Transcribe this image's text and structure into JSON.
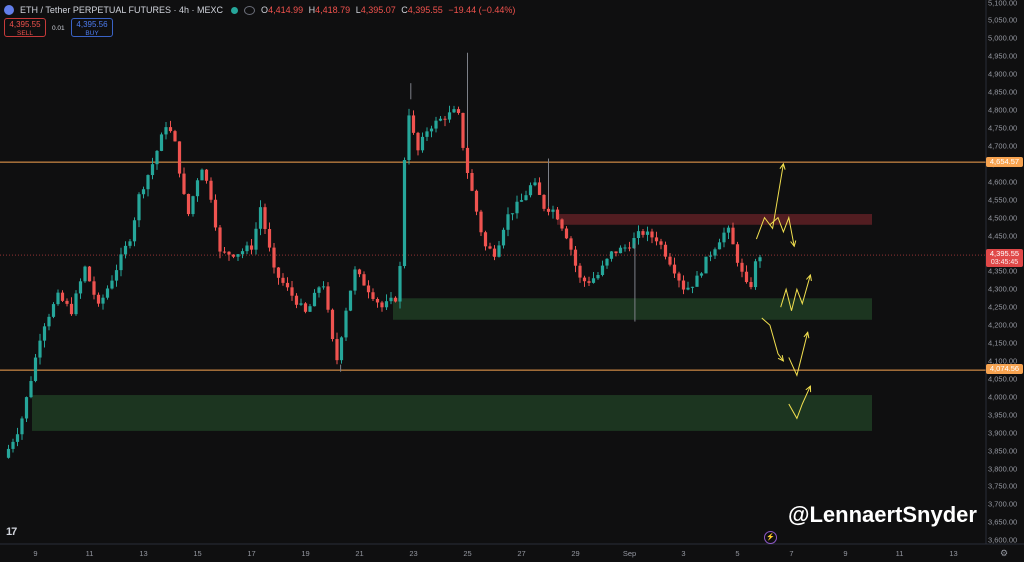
{
  "header": {
    "symbol": "ETH / Tether PERPETUAL FUTURES · 4h · MEXC",
    "ohlc": [
      {
        "k": "O",
        "v": "4,414.99"
      },
      {
        "k": "H",
        "v": "4,418.79"
      },
      {
        "k": "L",
        "v": "4,395.07"
      },
      {
        "k": "C",
        "v": "4,395.55"
      }
    ],
    "change": "−19.44 (−0.44%)"
  },
  "trade": {
    "sell_price": "4,395.55",
    "sell_label": "SELL",
    "buy_price": "4,395.56",
    "buy_label": "BUY",
    "spread": "0.01"
  },
  "price_axis": [
    "5,100.00",
    "5,050.00",
    "5,000.00",
    "4,950.00",
    "4,900.00",
    "4,850.00",
    "4,800.00",
    "4,750.00",
    "4,700.00",
    "4,650.00",
    "4,600.00",
    "4,550.00",
    "4,500.00",
    "4,450.00",
    "4,400.00",
    "4,350.00",
    "4,300.00",
    "4,250.00",
    "4,200.00",
    "4,150.00",
    "4,100.00",
    "4,050.00",
    "4,000.00",
    "3,950.00",
    "3,900.00",
    "3,850.00",
    "3,800.00",
    "3,750.00",
    "3,700.00",
    "3,650.00",
    "3,600.00"
  ],
  "time_axis": [
    "9",
    "11",
    "13",
    "15",
    "17",
    "19",
    "21",
    "23",
    "25",
    "27",
    "29",
    "Sep",
    "3",
    "5",
    "7",
    "9",
    "11",
    "13"
  ],
  "badges": {
    "upper_line": "4,654.57",
    "current": "4,395.55",
    "countdown": "03:45:45",
    "lower_line": "4,074.56"
  },
  "watermark": "@LennaertSnyder",
  "tv_logo": "17",
  "colors": {
    "up": "#26a69a",
    "down": "#ef5350",
    "level": "#f7a350",
    "demand": "#1e3a22",
    "supply": "#5a1f24",
    "arrow": "#f2e04f"
  },
  "chart_data": {
    "type": "candlestick",
    "y_range": [
      3580,
      5110
    ],
    "x_range_days": [
      "Aug 8",
      "Sep 13"
    ],
    "horizontal_levels": [
      4654.57,
      4074.56
    ],
    "current_price": 4395.55,
    "zones": [
      {
        "kind": "supply",
        "low": 4480,
        "high": 4510
      },
      {
        "kind": "demand",
        "low": 4215,
        "high": 4275
      },
      {
        "kind": "demand",
        "low": 3905,
        "high": 4005
      }
    ],
    "anchors": [
      [
        8.0,
        3830
      ],
      [
        8.6,
        3920
      ],
      [
        9.0,
        4050
      ],
      [
        9.4,
        4190
      ],
      [
        10.0,
        4280
      ],
      [
        10.5,
        4240
      ],
      [
        11.0,
        4360
      ],
      [
        11.5,
        4250
      ],
      [
        12.0,
        4330
      ],
      [
        12.7,
        4450
      ],
      [
        13.0,
        4560
      ],
      [
        13.5,
        4650
      ],
      [
        14.0,
        4760
      ],
      [
        14.3,
        4720
      ],
      [
        14.8,
        4500
      ],
      [
        15.3,
        4650
      ],
      [
        15.7,
        4550
      ],
      [
        16.0,
        4400
      ],
      [
        16.6,
        4400
      ],
      [
        17.2,
        4420
      ],
      [
        17.5,
        4530
      ],
      [
        18.0,
        4350
      ],
      [
        18.5,
        4300
      ],
      [
        19.2,
        4230
      ],
      [
        19.8,
        4330
      ],
      [
        20.3,
        4090
      ],
      [
        20.7,
        4260
      ],
      [
        21.0,
        4350
      ],
      [
        21.5,
        4300
      ],
      [
        22.0,
        4250
      ],
      [
        22.6,
        4280
      ],
      [
        22.75,
        4460
      ],
      [
        22.9,
        4830
      ],
      [
        23.3,
        4680
      ],
      [
        23.7,
        4750
      ],
      [
        24.3,
        4780
      ],
      [
        24.8,
        4800
      ],
      [
        25.1,
        4650
      ],
      [
        25.4,
        4550
      ],
      [
        25.8,
        4420
      ],
      [
        26.2,
        4400
      ],
      [
        26.6,
        4500
      ],
      [
        27.2,
        4550
      ],
      [
        27.6,
        4600
      ],
      [
        28.0,
        4530
      ],
      [
        28.4,
        4520
      ],
      [
        28.9,
        4440
      ],
      [
        29.3,
        4330
      ],
      [
        29.6,
        4320
      ],
      [
        30.0,
        4340
      ],
      [
        30.5,
        4400
      ],
      [
        31.1,
        4420
      ],
      [
        31.6,
        4460
      ],
      [
        32.2,
        4440
      ],
      [
        32.8,
        4360
      ],
      [
        33.2,
        4300
      ],
      [
        33.6,
        4320
      ],
      [
        34.0,
        4380
      ],
      [
        34.5,
        4440
      ],
      [
        34.8,
        4470
      ],
      [
        35.3,
        4350
      ],
      [
        35.6,
        4290
      ],
      [
        35.9,
        4395
      ]
    ],
    "projected_paths": [
      [
        [
          35.7,
          4440
        ],
        [
          36.0,
          4500
        ],
        [
          36.3,
          4470
        ],
        [
          36.7,
          4650
        ]
      ],
      [
        [
          36.2,
          4480
        ],
        [
          36.5,
          4500
        ],
        [
          36.7,
          4460
        ],
        [
          36.9,
          4500
        ],
        [
          37.1,
          4420
        ]
      ],
      [
        [
          36.6,
          4250
        ],
        [
          36.8,
          4300
        ],
        [
          37.0,
          4240
        ],
        [
          37.2,
          4300
        ],
        [
          37.4,
          4260
        ],
        [
          37.7,
          4340
        ]
      ],
      [
        [
          35.9,
          4220
        ],
        [
          36.2,
          4200
        ],
        [
          36.5,
          4120
        ],
        [
          36.7,
          4100
        ]
      ],
      [
        [
          36.9,
          4110
        ],
        [
          37.2,
          4060
        ],
        [
          37.6,
          4180
        ]
      ],
      [
        [
          36.9,
          3980
        ],
        [
          37.2,
          3940
        ],
        [
          37.4,
          3980
        ],
        [
          37.7,
          4030
        ]
      ]
    ],
    "annotations": [
      "@LennaertSnyder"
    ]
  }
}
